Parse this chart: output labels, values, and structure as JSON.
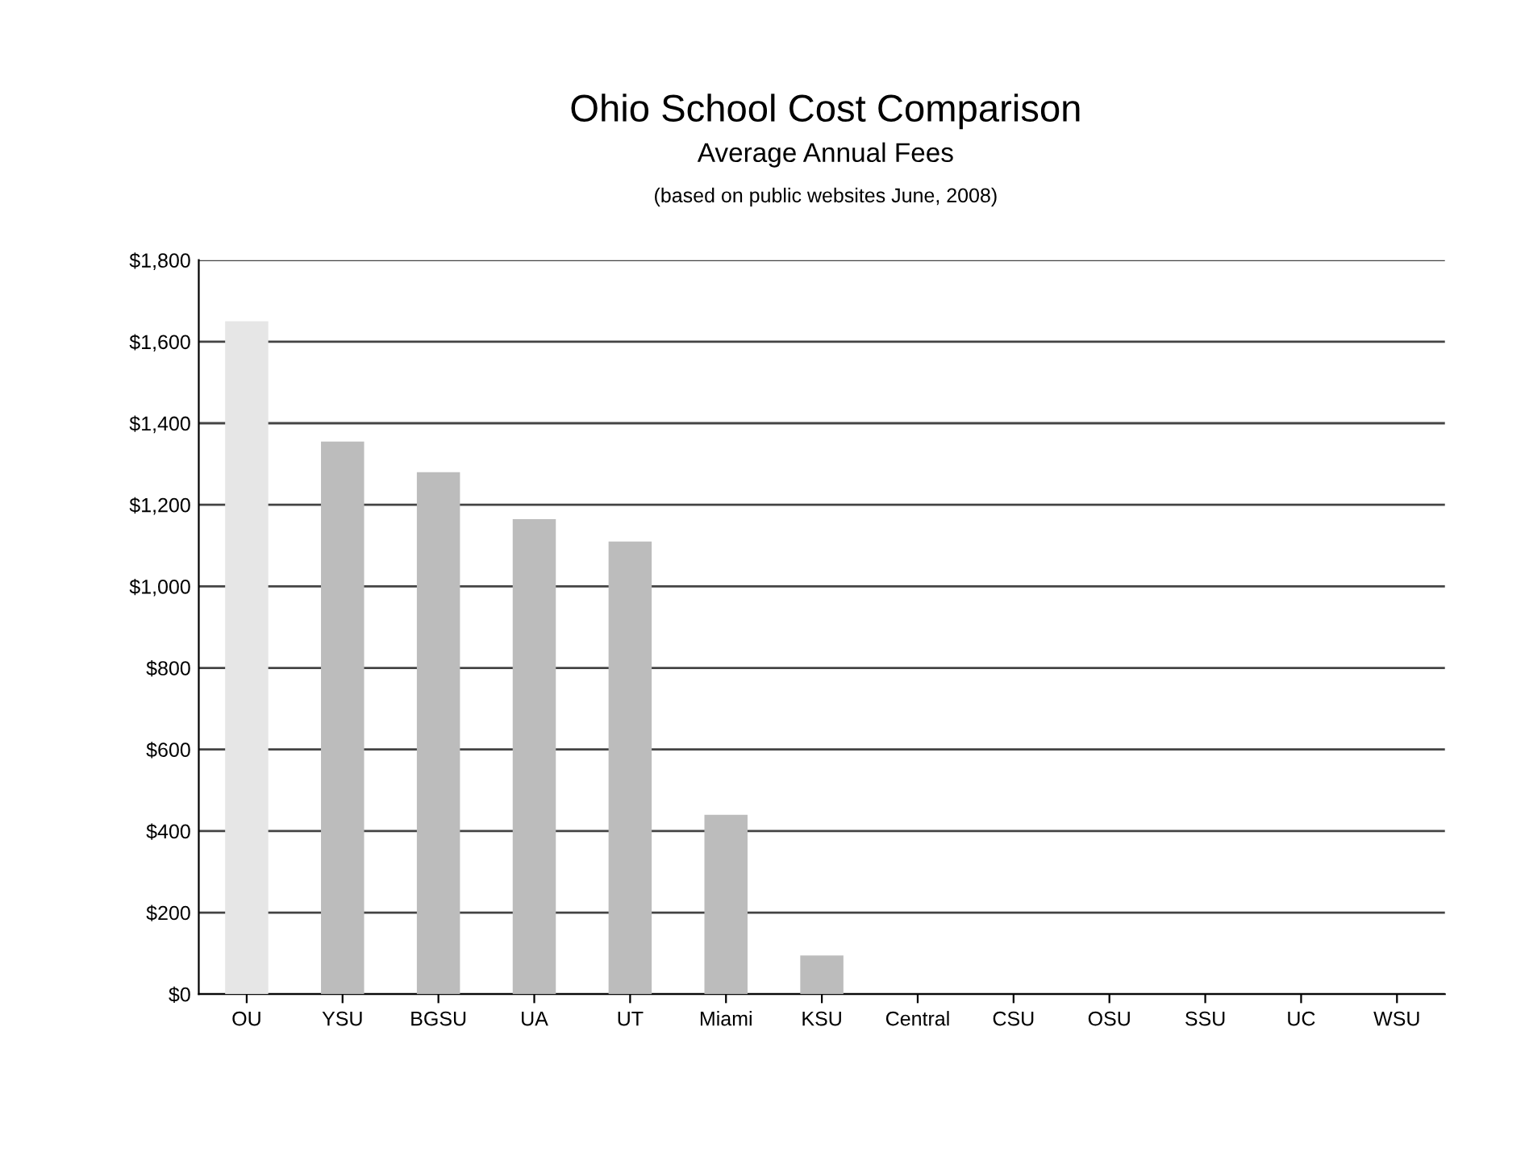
{
  "chart_data": {
    "type": "bar",
    "title": "Ohio School Cost Comparison",
    "subtitle": "Average Annual Fees",
    "annotations": [
      "(based on public websites June, 2008)"
    ],
    "categories": [
      "OU",
      "YSU",
      "BGSU",
      "UA",
      "UT",
      "Miami",
      "KSU",
      "Central",
      "CSU",
      "OSU",
      "SSU",
      "UC",
      "WSU"
    ],
    "values": [
      1650,
      1355,
      1280,
      1165,
      1110,
      440,
      95,
      0,
      0,
      0,
      0,
      0,
      0
    ],
    "colors": [
      "#e6e6e6",
      "#bcbcbc",
      "#bcbcbc",
      "#bcbcbc",
      "#bcbcbc",
      "#bcbcbc",
      "#bcbcbc",
      "#bcbcbc",
      "#bcbcbc",
      "#bcbcbc",
      "#bcbcbc",
      "#bcbcbc",
      "#bcbcbc"
    ],
    "ylim": [
      0,
      1800
    ],
    "yticks": [
      {
        "value": 0,
        "label": "$0"
      },
      {
        "value": 200,
        "label": "$200"
      },
      {
        "value": 400,
        "label": "$400"
      },
      {
        "value": 600,
        "label": "$600"
      },
      {
        "value": 800,
        "label": "$800"
      },
      {
        "value": 1000,
        "label": "$1,000"
      },
      {
        "value": 1200,
        "label": "$1,200"
      },
      {
        "value": 1400,
        "label": "$1,400"
      },
      {
        "value": 1600,
        "label": "$1,600"
      },
      {
        "value": 1800,
        "label": "$1,800"
      }
    ],
    "grid": "y"
  }
}
